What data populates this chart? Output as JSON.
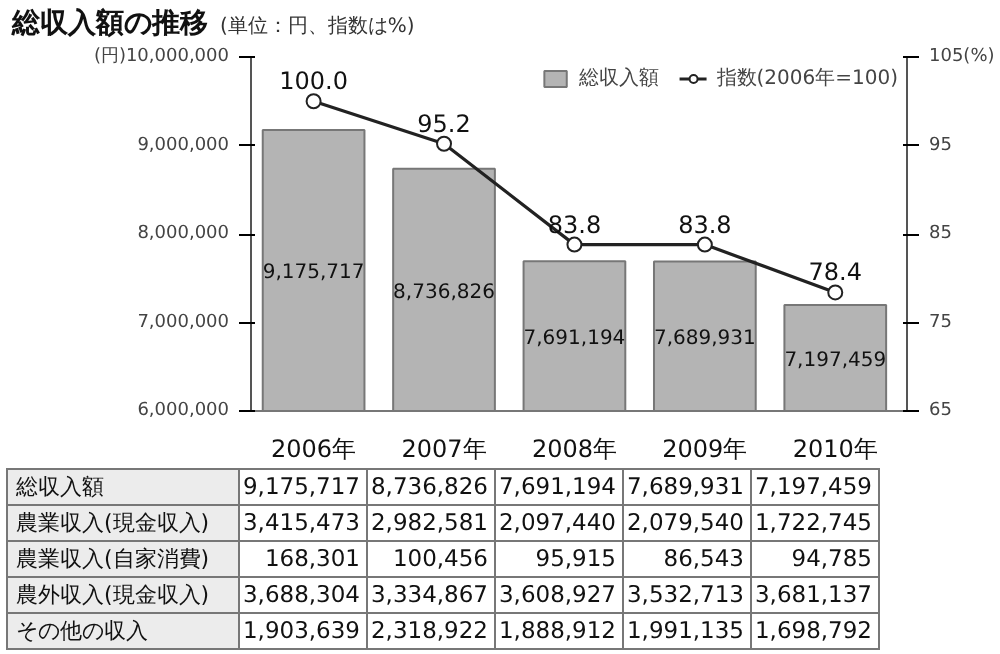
{
  "chart_data": {
    "type": "bar",
    "title": "総収入額の推移",
    "subtitle": "(単位：円、指数は%)",
    "categories": [
      "2006年",
      "2007年",
      "2008年",
      "2009年",
      "2010年"
    ],
    "series": [
      {
        "name": "総収入額",
        "color": "#b4b4b4",
        "values": [
          9175717,
          8736826,
          7691194,
          7689931,
          7197459
        ],
        "value_labels": [
          "9,175,717",
          "8,736,826",
          "7,691,194",
          "7,689,931",
          "7,197,459"
        ]
      },
      {
        "type": "line",
        "name": "指数(2006年=100)",
        "color": "#222222",
        "axis": "y2",
        "marker": "circle",
        "values": [
          100.0,
          95.2,
          83.8,
          83.8,
          78.4
        ],
        "value_labels": [
          "100.0",
          "95.2",
          "83.8",
          "83.8",
          "78.4"
        ]
      }
    ],
    "ylim": [
      6000000,
      10000000
    ],
    "yticks": [
      {
        "value": 6000000,
        "label": "6,000,000"
      },
      {
        "value": 7000000,
        "label": "7,000,000"
      },
      {
        "value": 8000000,
        "label": "8,000,000"
      },
      {
        "value": 9000000,
        "label": "9,000,000"
      },
      {
        "value": 10000000,
        "label": "(円)10,000,000"
      }
    ],
    "y2lim": [
      65,
      105
    ],
    "y2ticks": [
      65,
      75,
      85,
      95,
      {
        "value": 105,
        "label": "105(%)"
      }
    ],
    "legend": "top right",
    "grid": false,
    "annotations": [
      "農業収入(現金収入)",
      "3,415,473",
      "2,982,581",
      "2,097,440",
      "2,079,540",
      "1,722,745",
      "農業収入(自家消費)",
      "168,301",
      "100,456",
      "95,915",
      "86,543",
      "94,785",
      "農外収入(現金収入)",
      "3,688,304",
      "3,334,867",
      "3,608,927",
      "3,532,713",
      "3,681,137",
      "その他の収入",
      "1,903,639",
      "2,318,922",
      "1,888,912",
      "1,991,135",
      "1,698,792"
    ]
  }
}
